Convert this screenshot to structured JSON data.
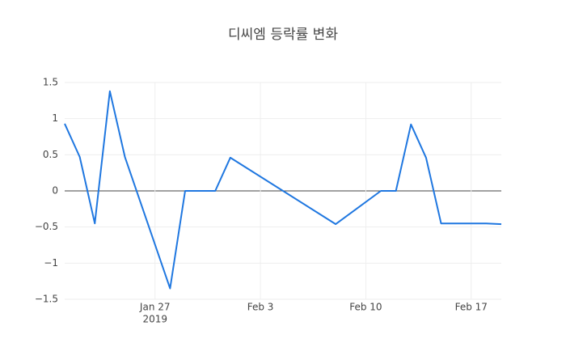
{
  "chart_data": {
    "type": "line",
    "title": "디씨엠 등락률 변화",
    "x": [
      "2019-01-21",
      "2019-01-22",
      "2019-01-23",
      "2019-01-24",
      "2019-01-25",
      "2019-01-28",
      "2019-01-29",
      "2019-01-30",
      "2019-01-31",
      "2019-02-01",
      "2019-02-08",
      "2019-02-11",
      "2019-02-12",
      "2019-02-13",
      "2019-02-14",
      "2019-02-15",
      "2019-02-18",
      "2019-02-19"
    ],
    "series": [
      {
        "color": "#1f77e0",
        "values": [
          0.93,
          0.47,
          -0.45,
          1.38,
          0.47,
          -1.35,
          0,
          0,
          0,
          0.46,
          -0.46,
          0,
          0,
          0.92,
          0.46,
          -0.45,
          -0.45,
          -0.46
        ]
      }
    ],
    "xlim": [
      "2019-01-21",
      "2019-02-19"
    ],
    "xticks": [
      {
        "value": "2019-01-27",
        "label": "Jan 27"
      },
      {
        "value": "2019-02-03",
        "label": "Feb 3"
      },
      {
        "value": "2019-02-10",
        "label": "Feb 10"
      },
      {
        "value": "2019-02-17",
        "label": "Feb 17"
      }
    ],
    "xtick_year": "2019",
    "ylim": [
      -1.5,
      1.5
    ],
    "yticks": [
      1.5,
      1,
      0.5,
      0,
      {
        "value": -0.5,
        "label": "−0.5"
      },
      {
        "value": -1,
        "label": "−1"
      },
      {
        "value": -1.5,
        "label": "−1.5"
      }
    ],
    "grid": true
  }
}
